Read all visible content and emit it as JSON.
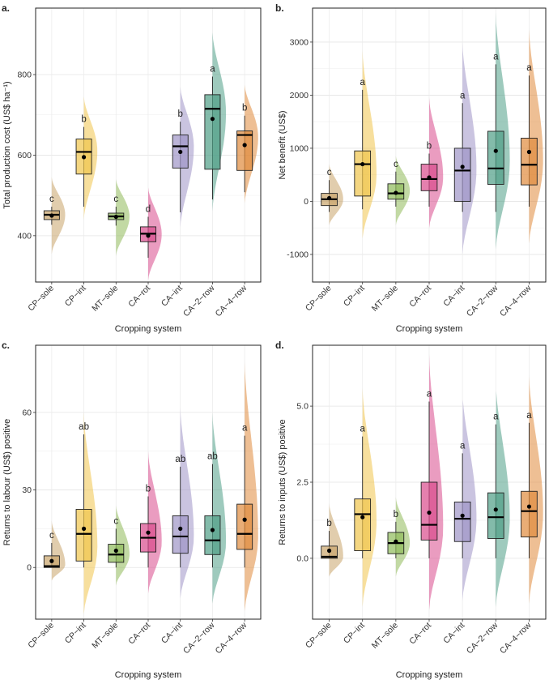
{
  "colors": {
    "CP-sole": "#c9a46a",
    "CP-int": "#f0c44c",
    "MT-sole": "#8fba5a",
    "CA-rot": "#d94a8c",
    "CA-int": "#9e94c6",
    "CA-2-row": "#4f9e86",
    "CA-4-row": "#e08a3c"
  },
  "chart_data": [
    {
      "panel": "a.",
      "type": "box",
      "categories": [
        "CP−sole",
        "CP−int",
        "MT−sole",
        "CA−rot",
        "CA−int",
        "CA−2−row",
        "CA−4−row"
      ],
      "xlabel": "Cropping system",
      "ylabel": "Total production cost (US$ ha⁻¹)",
      "ylim": [
        285,
        965
      ],
      "yticks": [
        400,
        600,
        800
      ],
      "ytick_labels": [
        "400",
        "600",
        "800"
      ],
      "series": [
        {
          "q1": 440,
          "median": 452,
          "q3": 462,
          "whisker_low": 427,
          "whisker_high": 472,
          "mean": 450,
          "density_min": 355,
          "density_max": 545,
          "density_peak": 452,
          "letter": "c"
        },
        {
          "q1": 553,
          "median": 608,
          "q3": 640,
          "whisker_low": 472,
          "whisker_high": 670,
          "mean": 595,
          "density_min": 440,
          "density_max": 745,
          "density_peak": 610,
          "letter": "b"
        },
        {
          "q1": 440,
          "median": 448,
          "q3": 456,
          "whisker_low": 425,
          "whisker_high": 472,
          "mean": 447,
          "density_min": 350,
          "density_max": 540,
          "density_peak": 448,
          "letter": "c"
        },
        {
          "q1": 385,
          "median": 405,
          "q3": 422,
          "whisker_low": 345,
          "whisker_high": 447,
          "mean": 400,
          "density_min": 290,
          "density_max": 520,
          "density_peak": 403,
          "letter": "d"
        },
        {
          "q1": 568,
          "median": 622,
          "q3": 650,
          "whisker_low": 458,
          "whisker_high": 683,
          "mean": 608,
          "density_min": 420,
          "density_max": 770,
          "density_peak": 620,
          "letter": "b"
        },
        {
          "q1": 565,
          "median": 715,
          "q3": 750,
          "whisker_low": 490,
          "whisker_high": 795,
          "mean": 690,
          "density_min": 460,
          "density_max": 905,
          "density_peak": 705,
          "letter": "a"
        },
        {
          "q1": 562,
          "median": 650,
          "q3": 660,
          "whisker_low": 508,
          "whisker_high": 698,
          "mean": 625,
          "density_min": 480,
          "density_max": 775,
          "density_peak": 645,
          "letter": "b"
        }
      ]
    },
    {
      "panel": "b.",
      "type": "box",
      "categories": [
        "CP−sole",
        "CP−int",
        "MT−sole",
        "CA−rot",
        "CA−int",
        "CA−2−row",
        "CA−4−row"
      ],
      "xlabel": "Cropping system",
      "ylabel": "Net benefit (US$)",
      "ylim": [
        -1520,
        3640
      ],
      "yticks": [
        -1000,
        0,
        1000,
        2000,
        3000
      ],
      "ytick_labels": [
        "-1000",
        "0",
        "1000",
        "2000",
        "3000"
      ],
      "series": [
        {
          "q1": -80,
          "median": 40,
          "q3": 150,
          "whisker_low": -200,
          "whisker_high": 400,
          "mean": 60,
          "density_min": -450,
          "density_max": 700,
          "density_peak": 40,
          "letter": "c"
        },
        {
          "q1": 100,
          "median": 700,
          "q3": 950,
          "whisker_low": -150,
          "whisker_high": 2100,
          "mean": 700,
          "density_min": -700,
          "density_max": 2850,
          "density_peak": 500,
          "letter": "a"
        },
        {
          "q1": 40,
          "median": 150,
          "q3": 330,
          "whisker_low": -100,
          "whisker_high": 560,
          "mean": 160,
          "density_min": -450,
          "density_max": 850,
          "density_peak": 200,
          "letter": "c"
        },
        {
          "q1": 200,
          "median": 420,
          "q3": 700,
          "whisker_low": -100,
          "whisker_high": 900,
          "mean": 450,
          "density_min": -500,
          "density_max": 1950,
          "density_peak": 450,
          "letter": "b"
        },
        {
          "q1": 0,
          "median": 580,
          "q3": 1000,
          "whisker_low": -200,
          "whisker_high": 1850,
          "mean": 650,
          "density_min": -1000,
          "density_max": 3000,
          "density_peak": 600,
          "letter": "a"
        },
        {
          "q1": 320,
          "median": 620,
          "q3": 1320,
          "whisker_low": -200,
          "whisker_high": 2580,
          "mean": 950,
          "density_min": -900,
          "density_max": 3550,
          "density_peak": 750,
          "letter": "a"
        },
        {
          "q1": 310,
          "median": 690,
          "q3": 1190,
          "whisker_low": -100,
          "whisker_high": 2370,
          "mean": 930,
          "density_min": -800,
          "density_max": 3250,
          "density_peak": 750,
          "letter": "a"
        }
      ]
    },
    {
      "panel": "c.",
      "type": "box",
      "categories": [
        "CP−sole",
        "CP−int",
        "MT−sole",
        "CA−rot",
        "CA−int",
        "CA−2−row",
        "CA−4−row"
      ],
      "xlabel": "Cropping system",
      "ylabel": "Returns to labour (US$) positive",
      "ylim": [
        -20,
        86
      ],
      "yticks": [
        0,
        30,
        60
      ],
      "ytick_labels": [
        "0",
        "30",
        "60"
      ],
      "series": [
        {
          "q1": 0,
          "median": 0.5,
          "q3": 4.5,
          "whisker_low": 0,
          "whisker_high": 9.5,
          "mean": 2.5,
          "density_min": -5,
          "density_max": 18,
          "density_peak": 1,
          "letter": "c"
        },
        {
          "q1": 2.5,
          "median": 13,
          "q3": 22.5,
          "whisker_low": 0,
          "whisker_high": 51.5,
          "mean": 15,
          "density_min": -18,
          "density_max": 60,
          "density_peak": 8,
          "letter": "ab"
        },
        {
          "q1": 2,
          "median": 5,
          "q3": 9,
          "whisker_low": 0,
          "whisker_high": 15,
          "mean": 6.5,
          "density_min": -7,
          "density_max": 24,
          "density_peak": 5,
          "letter": "c"
        },
        {
          "q1": 6,
          "median": 11.5,
          "q3": 17,
          "whisker_low": 0,
          "whisker_high": 27.5,
          "mean": 13.5,
          "density_min": -10,
          "density_max": 45,
          "density_peak": 10,
          "letter": "b"
        },
        {
          "q1": 5.5,
          "median": 12,
          "q3": 20,
          "whisker_low": 0,
          "whisker_high": 39,
          "mean": 15,
          "density_min": -12,
          "density_max": 62,
          "density_peak": 12,
          "letter": "ab"
        },
        {
          "q1": 5,
          "median": 10.5,
          "q3": 20,
          "whisker_low": 0,
          "whisker_high": 40,
          "mean": 14.5,
          "density_min": -14,
          "density_max": 60,
          "density_peak": 10,
          "letter": "ab"
        },
        {
          "q1": 7,
          "median": 13,
          "q3": 24.5,
          "whisker_low": 0,
          "whisker_high": 51,
          "mean": 18.5,
          "density_min": -17,
          "density_max": 80,
          "density_peak": 12,
          "letter": "a"
        }
      ]
    },
    {
      "panel": "d.",
      "type": "box",
      "categories": [
        "CP−sole",
        "CP−int",
        "MT−sole",
        "CA−rot",
        "CA−int",
        "CA−2−row",
        "CA−4−row"
      ],
      "xlabel": "Cropping system",
      "ylabel": "Returns to inputs (US$) positive",
      "ylim": [
        -2,
        7
      ],
      "yticks": [
        0,
        2.5,
        5
      ],
      "ytick_labels": [
        "0.0",
        "2.5",
        "5.0"
      ],
      "series": [
        {
          "q1": 0,
          "median": 0.05,
          "q3": 0.4,
          "whisker_low": 0,
          "whisker_high": 0.9,
          "mean": 0.25,
          "density_min": -0.6,
          "density_max": 1.8,
          "density_peak": 0.05,
          "letter": "b"
        },
        {
          "q1": 0.25,
          "median": 1.45,
          "q3": 1.95,
          "whisker_low": 0,
          "whisker_high": 4.0,
          "mean": 1.35,
          "density_min": -1.6,
          "density_max": 5.6,
          "density_peak": 1.2,
          "letter": "a"
        },
        {
          "q1": 0.15,
          "median": 0.5,
          "q3": 0.85,
          "whisker_low": 0,
          "whisker_high": 1.2,
          "mean": 0.55,
          "density_min": -0.6,
          "density_max": 2.0,
          "density_peak": 0.5,
          "letter": "b"
        },
        {
          "q1": 0.6,
          "median": 1.1,
          "q3": 2.5,
          "whisker_low": 0,
          "whisker_high": 5.15,
          "mean": 1.5,
          "density_min": -1.7,
          "density_max": 6.7,
          "density_peak": 1.0,
          "letter": "a"
        },
        {
          "q1": 0.55,
          "median": 1.3,
          "q3": 1.85,
          "whisker_low": 0,
          "whisker_high": 3.45,
          "mean": 1.4,
          "density_min": -1.4,
          "density_max": 5.5,
          "density_peak": 1.3,
          "letter": "a"
        },
        {
          "q1": 0.65,
          "median": 1.35,
          "q3": 2.15,
          "whisker_low": 0,
          "whisker_high": 4.4,
          "mean": 1.6,
          "density_min": -1.6,
          "density_max": 5.8,
          "density_peak": 1.3,
          "letter": "a"
        },
        {
          "q1": 0.7,
          "median": 1.55,
          "q3": 2.2,
          "whisker_low": 0,
          "whisker_high": 4.45,
          "mean": 1.7,
          "density_min": -1.5,
          "density_max": 6.0,
          "density_peak": 1.5,
          "letter": "a"
        }
      ]
    }
  ]
}
